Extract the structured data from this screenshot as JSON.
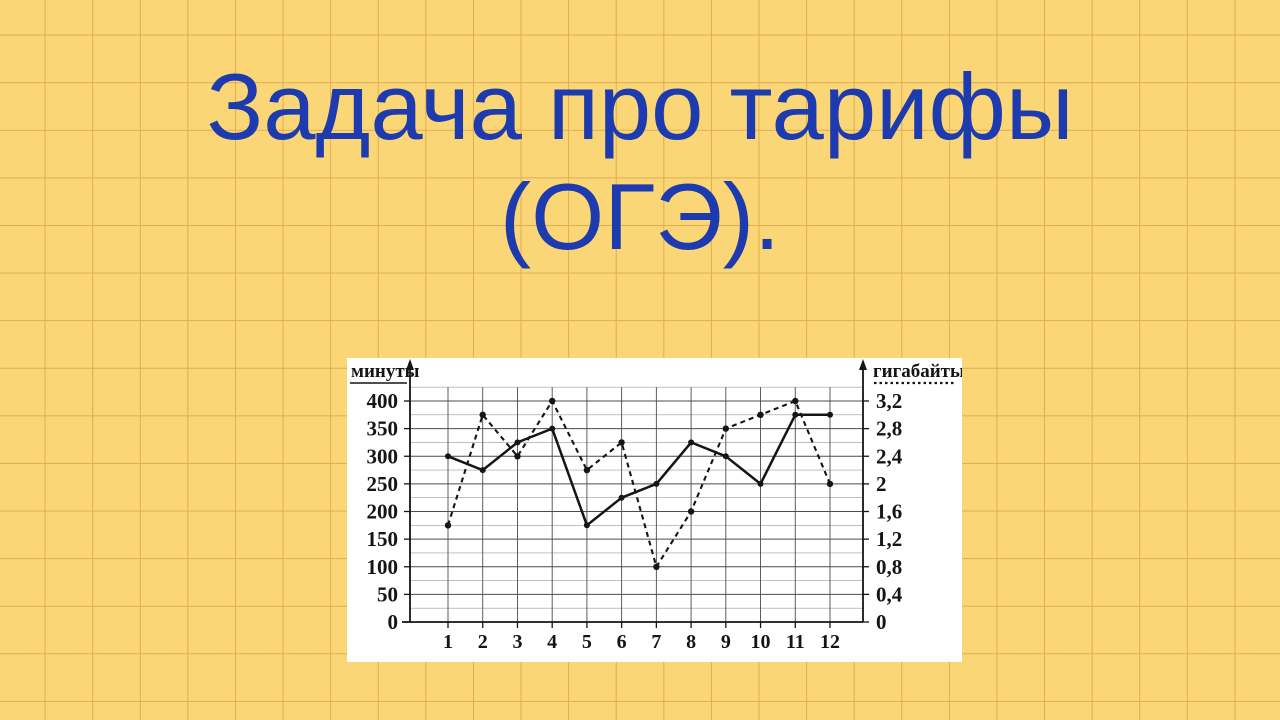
{
  "page": {
    "background_color": "#FBD676",
    "grid_line_color": "#E0AC52",
    "panel_color": "#FFFFFF",
    "ink_color": "#151515"
  },
  "title": {
    "line1": "Задача про тарифы",
    "line2": "(ОГЭ).",
    "color": "#1D3BAE"
  },
  "chart_data": {
    "type": "line",
    "x": [
      1,
      2,
      3,
      4,
      5,
      6,
      7,
      8,
      9,
      10,
      11,
      12
    ],
    "x_tick_labels": [
      "1",
      "2",
      "3",
      "4",
      "5",
      "6",
      "7",
      "8",
      "9",
      "10",
      "11",
      "12"
    ],
    "series": [
      {
        "name": "минуты",
        "axis": "left",
        "line_style": "solid",
        "values": [
          300,
          275,
          325,
          350,
          175,
          225,
          250,
          325,
          300,
          250,
          375,
          375
        ]
      },
      {
        "name": "гигабайты",
        "axis": "right",
        "line_style": "dashed",
        "values": [
          1.4,
          3,
          2.4,
          3.2,
          2.2,
          2.6,
          0.8,
          1.6,
          2.8,
          3,
          3.2,
          2
        ]
      }
    ],
    "left_axis": {
      "label": "минуты",
      "tick_labels": [
        "0",
        "50",
        "100",
        "150",
        "200",
        "250",
        "300",
        "350",
        "400"
      ],
      "tick_values": [
        0,
        50,
        100,
        150,
        200,
        250,
        300,
        350,
        400
      ],
      "range": [
        0,
        400
      ]
    },
    "right_axis": {
      "label": "гигабайты",
      "tick_labels": [
        "0",
        "0,4",
        "0,8",
        "1,2",
        "1,6",
        "2",
        "2,4",
        "2,8",
        "3,2"
      ],
      "range": [
        0,
        3.2
      ],
      "minutes_per_gigabyte": 125
    },
    "grid": true,
    "legend_position": "axis-top-labels"
  }
}
